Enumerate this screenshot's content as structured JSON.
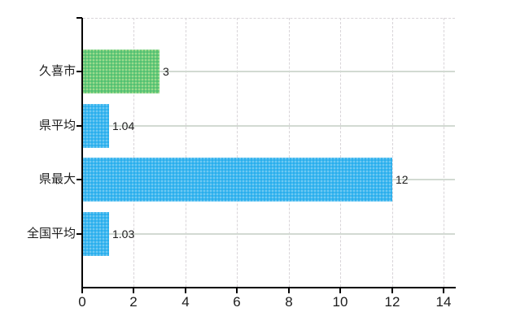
{
  "chart_data": {
    "type": "bar",
    "orientation": "horizontal",
    "title": "",
    "xlabel": "",
    "ylabel": "",
    "categories": [
      "久喜市",
      "県平均",
      "県最大",
      "全国平均"
    ],
    "values": [
      3,
      1.04,
      12,
      1.03
    ],
    "value_labels": [
      "3",
      "1.04",
      "12",
      "1.03"
    ],
    "bar_styles": [
      "green",
      "blue",
      "blue",
      "blue"
    ],
    "xlim": [
      0,
      14
    ],
    "x_ticks": [
      "0",
      "2",
      "4",
      "6",
      "8",
      "10",
      "12",
      "14"
    ],
    "x_tick_values": [
      0,
      2,
      4,
      6,
      8,
      10,
      12,
      14
    ],
    "grid": true,
    "legend": false
  },
  "colors": {
    "bar_green": "#68c97c",
    "bar_green_dot_light": "#aade8f",
    "bar_green_dot_dark": "#4dbd6d",
    "bar_blue": "#3eb7ef",
    "bar_blue_dot_light": "#7bcdf2",
    "bar_blue_dot_dark": "#24abec",
    "axis": "#000000",
    "grid_vertical_dashed": "#d8d4d8",
    "grid_horizontal": "#d2dad2",
    "label_text": "#1c1c1c",
    "background": "#ffffff"
  }
}
